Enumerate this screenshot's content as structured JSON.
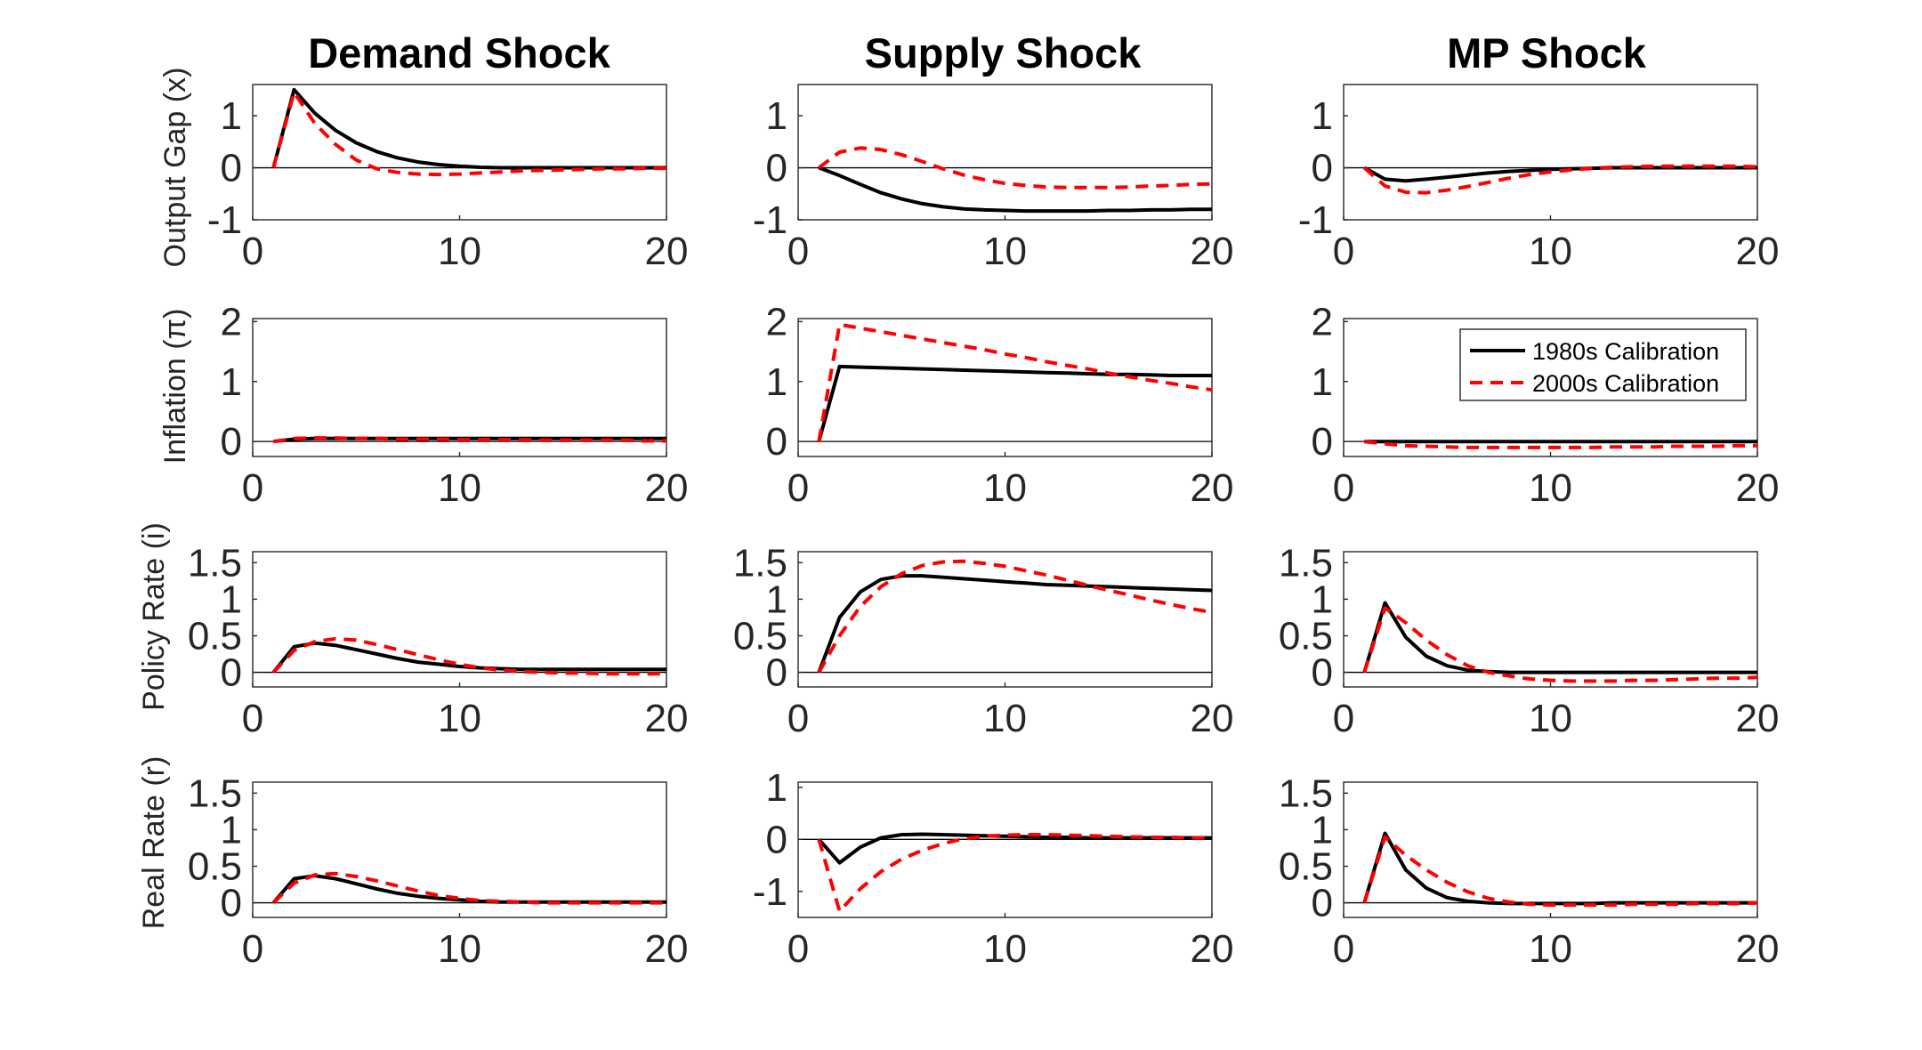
{
  "colors": {
    "calib1980": "#000000",
    "calib2000": "#ff0000"
  },
  "legend": {
    "entries": [
      "1980s Calibration",
      "2000s Calibration"
    ],
    "placement": "top-right"
  },
  "chart_data": {
    "type": "line",
    "layout": "4x3 grid of small multiples",
    "column_titles": [
      "Demand Shock",
      "Supply Shock",
      "MP Shock"
    ],
    "row_labels": [
      "Output Gap (x)",
      "Inflation (π)",
      "Policy Rate (i)",
      "Real Rate (r)"
    ],
    "x": [
      1,
      2,
      3,
      4,
      5,
      6,
      7,
      8,
      9,
      10,
      11,
      12,
      13,
      14,
      15,
      16,
      17,
      18,
      19,
      20
    ],
    "xlim": [
      0,
      20
    ],
    "xticks": [
      0,
      10,
      20
    ],
    "series_names": [
      "1980s Calibration",
      "2000s Calibration"
    ],
    "rows": [
      {
        "ylim": [
          -1,
          1.6
        ],
        "yticks": [
          -1,
          0,
          1
        ],
        "yticklabels": [
          "-1",
          "0",
          "1"
        ],
        "panels": [
          {
            "series": [
              {
                "name": "1980s Calibration",
                "values": [
                  0,
                  1.5,
                  1.05,
                  0.72,
                  0.48,
                  0.31,
                  0.19,
                  0.11,
                  0.06,
                  0.03,
                  0.01,
                  0,
                  0,
                  0,
                  0,
                  0,
                  0,
                  0,
                  0,
                  0
                ]
              },
              {
                "name": "2000s Calibration",
                "values": [
                  0,
                  1.45,
                  0.85,
                  0.45,
                  0.15,
                  -0.02,
                  -0.09,
                  -0.12,
                  -0.13,
                  -0.12,
                  -0.1,
                  -0.08,
                  -0.06,
                  -0.05,
                  -0.04,
                  -0.03,
                  -0.02,
                  -0.02,
                  -0.01,
                  -0.01
                ]
              }
            ]
          },
          {
            "series": [
              {
                "name": "1980s Calibration",
                "values": [
                  0,
                  -0.15,
                  -0.32,
                  -0.48,
                  -0.6,
                  -0.69,
                  -0.75,
                  -0.79,
                  -0.81,
                  -0.82,
                  -0.83,
                  -0.83,
                  -0.83,
                  -0.83,
                  -0.82,
                  -0.82,
                  -0.81,
                  -0.81,
                  -0.8,
                  -0.8
                ]
              },
              {
                "name": "2000s Calibration",
                "values": [
                  0,
                  0.3,
                  0.38,
                  0.35,
                  0.25,
                  0.12,
                  -0.02,
                  -0.14,
                  -0.23,
                  -0.3,
                  -0.34,
                  -0.37,
                  -0.38,
                  -0.38,
                  -0.38,
                  -0.37,
                  -0.35,
                  -0.34,
                  -0.32,
                  -0.31
                ]
              }
            ]
          },
          {
            "series": [
              {
                "name": "1980s Calibration",
                "values": [
                  0,
                  -0.22,
                  -0.25,
                  -0.22,
                  -0.18,
                  -0.14,
                  -0.1,
                  -0.07,
                  -0.05,
                  -0.03,
                  -0.02,
                  -0.01,
                  0,
                  0,
                  0,
                  0,
                  0,
                  0,
                  0,
                  0
                ]
              },
              {
                "name": "2000s Calibration",
                "values": [
                  0,
                  -0.35,
                  -0.47,
                  -0.48,
                  -0.43,
                  -0.36,
                  -0.28,
                  -0.2,
                  -0.13,
                  -0.08,
                  -0.04,
                  -0.01,
                  0.01,
                  0.02,
                  0.03,
                  0.03,
                  0.03,
                  0.03,
                  0.03,
                  0.02
                ]
              }
            ]
          }
        ]
      },
      {
        "ylim": [
          -0.25,
          2.05
        ],
        "yticks": [
          0,
          1,
          2
        ],
        "yticklabels": [
          "0",
          "1",
          "2"
        ],
        "panels": [
          {
            "series": [
              {
                "name": "1980s Calibration",
                "values": [
                  0,
                  0.04,
                  0.05,
                  0.05,
                  0.05,
                  0.05,
                  0.05,
                  0.05,
                  0.05,
                  0.05,
                  0.05,
                  0.05,
                  0.05,
                  0.05,
                  0.05,
                  0.05,
                  0.05,
                  0.05,
                  0.05,
                  0.05
                ]
              },
              {
                "name": "2000s Calibration",
                "values": [
                  0,
                  0.05,
                  0.06,
                  0.06,
                  0.05,
                  0.05,
                  0.04,
                  0.04,
                  0.04,
                  0.03,
                  0.03,
                  0.03,
                  0.03,
                  0.02,
                  0.02,
                  0.02,
                  0.02,
                  0.02,
                  0.01,
                  0.01
                ]
              }
            ]
          },
          {
            "series": [
              {
                "name": "1980s Calibration",
                "values": [
                  0,
                  1.25,
                  1.24,
                  1.23,
                  1.22,
                  1.21,
                  1.2,
                  1.19,
                  1.18,
                  1.17,
                  1.16,
                  1.15,
                  1.14,
                  1.13,
                  1.12,
                  1.12,
                  1.11,
                  1.1,
                  1.1,
                  1.1
                ]
              },
              {
                "name": "2000s Calibration",
                "values": [
                  0,
                  1.95,
                  1.89,
                  1.83,
                  1.77,
                  1.71,
                  1.65,
                  1.59,
                  1.53,
                  1.46,
                  1.4,
                  1.33,
                  1.27,
                  1.21,
                  1.14,
                  1.08,
                  1.02,
                  0.97,
                  0.91,
                  0.86
                ]
              }
            ]
          },
          {
            "series": [
              {
                "name": "1980s Calibration",
                "values": [
                  0,
                  0,
                  0,
                  0,
                  0,
                  0,
                  0,
                  0,
                  0,
                  0,
                  0,
                  0,
                  0,
                  0,
                  0,
                  0,
                  0,
                  0,
                  0,
                  0
                ]
              },
              {
                "name": "2000s Calibration",
                "values": [
                  0,
                  -0.04,
                  -0.07,
                  -0.08,
                  -0.09,
                  -0.1,
                  -0.1,
                  -0.1,
                  -0.1,
                  -0.1,
                  -0.1,
                  -0.1,
                  -0.09,
                  -0.09,
                  -0.09,
                  -0.08,
                  -0.08,
                  -0.08,
                  -0.07,
                  -0.07
                ]
              }
            ]
          }
        ]
      },
      {
        "ylim": [
          -0.2,
          1.65
        ],
        "yticks": [
          0,
          0.5,
          1,
          1.5
        ],
        "yticklabels": [
          "0",
          "0.5",
          "1",
          "1.5"
        ],
        "panels": [
          {
            "series": [
              {
                "name": "1980s Calibration",
                "values": [
                  0,
                  0.35,
                  0.4,
                  0.37,
                  0.31,
                  0.25,
                  0.19,
                  0.14,
                  0.11,
                  0.08,
                  0.06,
                  0.05,
                  0.04,
                  0.04,
                  0.04,
                  0.04,
                  0.04,
                  0.04,
                  0.04,
                  0.04
                ]
              },
              {
                "name": "2000s Calibration",
                "values": [
                  0,
                  0.3,
                  0.42,
                  0.46,
                  0.44,
                  0.38,
                  0.31,
                  0.24,
                  0.17,
                  0.11,
                  0.06,
                  0.03,
                  0.01,
                  0,
                  -0.01,
                  -0.01,
                  -0.02,
                  -0.02,
                  -0.02,
                  -0.02
                ]
              }
            ]
          },
          {
            "series": [
              {
                "name": "1980s Calibration",
                "values": [
                  0,
                  0.75,
                  1.1,
                  1.27,
                  1.32,
                  1.32,
                  1.3,
                  1.28,
                  1.26,
                  1.24,
                  1.22,
                  1.2,
                  1.19,
                  1.18,
                  1.17,
                  1.16,
                  1.15,
                  1.14,
                  1.13,
                  1.12
                ]
              },
              {
                "name": "2000s Calibration",
                "values": [
                  0,
                  0.5,
                  0.9,
                  1.17,
                  1.35,
                  1.46,
                  1.51,
                  1.52,
                  1.49,
                  1.45,
                  1.39,
                  1.33,
                  1.26,
                  1.19,
                  1.12,
                  1.06,
                  0.99,
                  0.93,
                  0.87,
                  0.82
                ]
              }
            ]
          },
          {
            "series": [
              {
                "name": "1980s Calibration",
                "values": [
                  0,
                  0.95,
                  0.48,
                  0.22,
                  0.09,
                  0.03,
                  0.01,
                  0,
                  0,
                  0,
                  0,
                  0,
                  0,
                  0,
                  0,
                  0,
                  0,
                  0,
                  0,
                  0
                ]
              },
              {
                "name": "2000s Calibration",
                "values": [
                  0,
                  0.88,
                  0.68,
                  0.44,
                  0.24,
                  0.09,
                  0,
                  -0.05,
                  -0.09,
                  -0.11,
                  -0.12,
                  -0.12,
                  -0.12,
                  -0.11,
                  -0.11,
                  -0.1,
                  -0.09,
                  -0.08,
                  -0.08,
                  -0.07
                ]
              }
            ]
          }
        ]
      },
      {
        "row_panel_ylims": [
          [
            -0.2,
            1.65
          ],
          [
            -1.5,
            1.1
          ],
          [
            -0.2,
            1.65
          ]
        ],
        "row_panel_yticks": [
          [
            0,
            0.5,
            1,
            1.5
          ],
          [
            -1,
            0,
            1
          ],
          [
            0,
            0.5,
            1,
            1.5
          ]
        ],
        "row_panel_yticklabels": [
          [
            "0",
            "0.5",
            "1",
            "1.5"
          ],
          [
            "-1",
            "0",
            "1"
          ],
          [
            "0",
            "0.5",
            "1",
            "1.5"
          ]
        ],
        "panels": [
          {
            "series": [
              {
                "name": "1980s Calibration",
                "values": [
                  0,
                  0.33,
                  0.37,
                  0.33,
                  0.26,
                  0.19,
                  0.13,
                  0.09,
                  0.06,
                  0.04,
                  0.02,
                  0.01,
                  0.01,
                  0.01,
                  0.01,
                  0.01,
                  0.01,
                  0.01,
                  0.01,
                  0.01
                ]
              },
              {
                "name": "2000s Calibration",
                "values": [
                  0,
                  0.27,
                  0.38,
                  0.4,
                  0.36,
                  0.3,
                  0.23,
                  0.16,
                  0.1,
                  0.06,
                  0.03,
                  0.02,
                  0.01,
                  0,
                  0,
                  0,
                  0,
                  0,
                  0,
                  0
                ]
              }
            ]
          },
          {
            "series": [
              {
                "name": "1980s Calibration",
                "values": [
                  0,
                  -0.45,
                  -0.15,
                  0.03,
                  0.09,
                  0.1,
                  0.09,
                  0.08,
                  0.07,
                  0.06,
                  0.05,
                  0.04,
                  0.04,
                  0.03,
                  0.03,
                  0.03,
                  0.03,
                  0.03,
                  0.03,
                  0.03
                ]
              },
              {
                "name": "2000s Calibration",
                "values": [
                  0,
                  -1.38,
                  -0.95,
                  -0.62,
                  -0.38,
                  -0.21,
                  -0.08,
                  0.01,
                  0.06,
                  0.08,
                  0.09,
                  0.09,
                  0.08,
                  0.07,
                  0.06,
                  0.05,
                  0.04,
                  0.04,
                  0.03,
                  0.03
                ]
              }
            ]
          },
          {
            "series": [
              {
                "name": "1980s Calibration",
                "values": [
                  0,
                  0.95,
                  0.45,
                  0.2,
                  0.07,
                  0.02,
                  0,
                  -0.01,
                  -0.01,
                  -0.01,
                  -0.01,
                  -0.01,
                  0,
                  0,
                  0,
                  0,
                  0,
                  0,
                  0,
                  0
                ]
              },
              {
                "name": "2000s Calibration",
                "values": [
                  0,
                  0.9,
                  0.65,
                  0.45,
                  0.28,
                  0.15,
                  0.06,
                  0.01,
                  -0.02,
                  -0.03,
                  -0.03,
                  -0.03,
                  -0.03,
                  -0.02,
                  -0.02,
                  -0.02,
                  -0.01,
                  -0.01,
                  -0.01,
                  0
                ]
              }
            ]
          }
        ]
      }
    ]
  }
}
